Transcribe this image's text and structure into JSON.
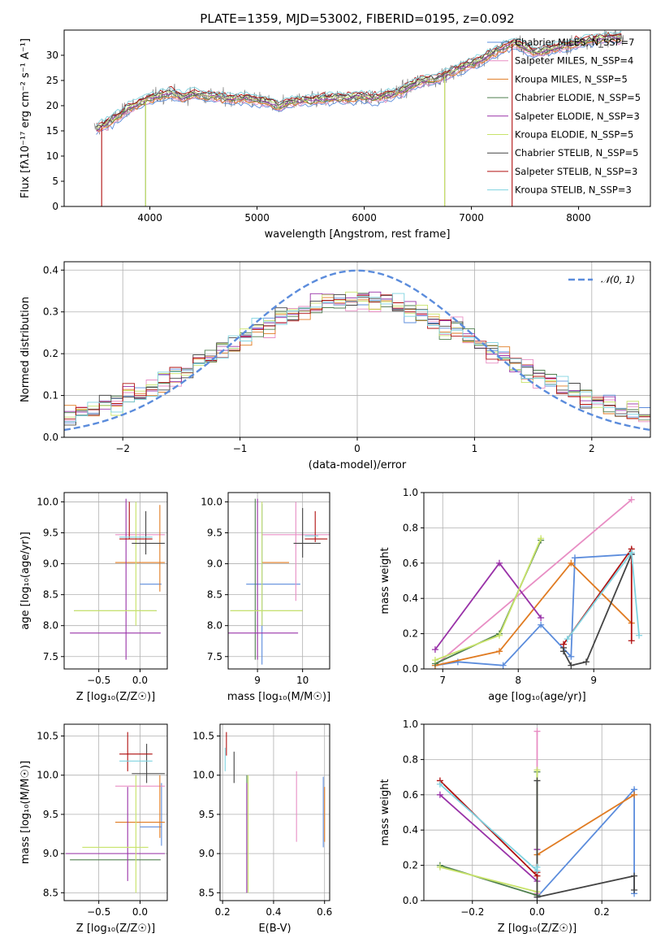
{
  "colors": {
    "chabrier_miles": "#5b8cdc",
    "salpeter_miles": "#e88ec4",
    "kroupa_miles": "#e07b22",
    "chabrier_elodie": "#4f7f4f",
    "salpeter_elodie": "#9932a8",
    "kroupa_elodie": "#c8e36a",
    "chabrier_stelib": "#444444",
    "salpeter_stelib": "#b01010",
    "kroupa_stelib": "#7fd3e0",
    "data": "#808080",
    "gauss": "#5b8cdc"
  },
  "chart_data": [
    {
      "id": "spectrum",
      "type": "line",
      "title": "PLATE=1359, MJD=53002, FIBERID=0195, z=0.092",
      "xlabel": "wavelength [Angstrom, rest frame]",
      "ylabel": "Flux [fλ10⁻¹⁷ erg cm⁻² s⁻¹ A⁻¹]",
      "xlim": [
        3200,
        8670
      ],
      "ylim": [
        0,
        35
      ],
      "xticks": [
        4000,
        5000,
        6000,
        7000,
        8000
      ],
      "yticks": [
        0,
        5,
        10,
        15,
        20,
        25,
        30
      ],
      "legend": [
        "Chabrier MILES, N_SSP=7",
        "Salpeter MILES, N_SSP=4",
        "Kroupa MILES, N_SSP=5",
        "Chabrier ELODIE, N_SSP=5",
        "Salpeter ELODIE, N_SSP=3",
        "Kroupa ELODIE, N_SSP=5",
        "Chabrier STELIB, N_SSP=5",
        "Salpeter STELIB, N_SSP=3",
        "Kroupa STELIB, N_SSP=3"
      ],
      "continuum": [
        [
          3500,
          15.5
        ],
        [
          3600,
          16.5
        ],
        [
          3700,
          17.8
        ],
        [
          3800,
          19.5
        ],
        [
          3900,
          20.5
        ],
        [
          4000,
          21.5
        ],
        [
          4100,
          22.0
        ],
        [
          4200,
          22.5
        ],
        [
          4300,
          21.5
        ],
        [
          4400,
          22.3
        ],
        [
          4500,
          22.0
        ],
        [
          4600,
          21.8
        ],
        [
          4700,
          21.5
        ],
        [
          4800,
          21.3
        ],
        [
          4900,
          21.5
        ],
        [
          5000,
          21.0
        ],
        [
          5100,
          20.8
        ],
        [
          5200,
          19.8
        ],
        [
          5300,
          20.7
        ],
        [
          5400,
          21.0
        ],
        [
          5500,
          21.0
        ],
        [
          5600,
          21.3
        ],
        [
          5700,
          21.5
        ],
        [
          5800,
          21.5
        ],
        [
          5900,
          21.6
        ],
        [
          6000,
          21.8
        ],
        [
          6100,
          21.5
        ],
        [
          6200,
          22.0
        ],
        [
          6300,
          22.5
        ],
        [
          6400,
          23.5
        ],
        [
          6500,
          24.8
        ],
        [
          6600,
          25.0
        ],
        [
          6700,
          25.5
        ],
        [
          6800,
          26.5
        ],
        [
          6900,
          27.5
        ],
        [
          7000,
          28.3
        ],
        [
          7100,
          29.2
        ],
        [
          7200,
          30.5
        ],
        [
          7300,
          31.5
        ],
        [
          7400,
          32.5
        ],
        [
          7500,
          31.5
        ],
        [
          7600,
          30.5
        ],
        [
          7700,
          31.0
        ],
        [
          7800,
          31.5
        ],
        [
          7900,
          32.0
        ],
        [
          8000,
          32.5
        ],
        [
          8100,
          33.0
        ],
        [
          8200,
          33.3
        ],
        [
          8300,
          33.5
        ],
        [
          8400,
          33.6
        ]
      ]
    },
    {
      "id": "residuals",
      "type": "histogram",
      "xlabel": "(data-model)/error",
      "ylabel": "Normed distribution",
      "xlim": [
        -2.5,
        2.5
      ],
      "ylim": [
        0,
        0.42
      ],
      "xticks": [
        -2,
        -1,
        0,
        1,
        2
      ],
      "yticks": [
        0.0,
        0.1,
        0.2,
        0.3,
        0.4
      ],
      "legend": [
        "𝒩(0, 1)"
      ],
      "bin_width": 0.1
    },
    {
      "id": "age_vs_Z",
      "type": "errorbar",
      "xlabel": "Z [log₁₀(Z/Z☉)]",
      "ylabel": "age  [log₁₀(age/yr)]",
      "xlim": [
        -0.92,
        0.33
      ],
      "ylim": [
        7.3,
        10.15
      ],
      "xticks": [
        -0.5,
        0.0
      ],
      "xtick_labels": [
        "−0.5",
        "0.0"
      ],
      "yticks": [
        7.5,
        8.0,
        8.5,
        9.0,
        9.5,
        10.0
      ],
      "points": [
        {
          "model": "chabrier_miles",
          "x": 0.13,
          "xerr": 0.13,
          "y": 8.67,
          "yerr": 0.0
        },
        {
          "model": "salpeter_miles",
          "x": 0.0,
          "xerr": 0.3,
          "y": 9.47,
          "yerr": 0.0
        },
        {
          "model": "kroupa_miles",
          "x": 0.0,
          "xerr": 0.3,
          "y": 9.02,
          "yerr": 0.0
        },
        {
          "model": "kroupa_miles",
          "x": 0.24,
          "xerr": 0.0,
          "y": 9.25,
          "yerr": 0.7
        },
        {
          "model": "chabrier_elodie",
          "x": -0.3,
          "xerr": 0.5,
          "y": 8.24,
          "yerr": 0.0
        },
        {
          "model": "salpeter_elodie",
          "x": -0.3,
          "xerr": 0.55,
          "y": 7.88,
          "yerr": 0.0
        },
        {
          "model": "salpeter_elodie",
          "x": -0.17,
          "xerr": 0.0,
          "y": 8.75,
          "yerr": 1.3
        },
        {
          "model": "kroupa_elodie",
          "x": -0.3,
          "xerr": 0.5,
          "y": 8.24,
          "yerr": 0.0
        },
        {
          "model": "kroupa_elodie",
          "x": -0.05,
          "xerr": 0.0,
          "y": 9.0,
          "yerr": 1.0
        },
        {
          "model": "chabrier_stelib",
          "x": 0.1,
          "xerr": 0.2,
          "y": 9.33,
          "yerr": 0.0
        },
        {
          "model": "chabrier_stelib",
          "x": 0.07,
          "xerr": 0.0,
          "y": 9.5,
          "yerr": 0.35
        },
        {
          "model": "salpeter_stelib",
          "x": -0.05,
          "xerr": 0.2,
          "y": 9.4,
          "yerr": 0.0
        },
        {
          "model": "salpeter_stelib",
          "x": -0.13,
          "xerr": 0.0,
          "y": 9.7,
          "yerr": 0.3
        },
        {
          "model": "kroupa_stelib",
          "x": -0.05,
          "xerr": 0.2,
          "y": 9.43,
          "yerr": 0.0
        }
      ]
    },
    {
      "id": "age_vs_mass",
      "type": "errorbar",
      "xlabel": "mass [log₁₀(M/M☉)]",
      "ylabel": "",
      "xlim": [
        8.35,
        10.6
      ],
      "ylim": [
        7.3,
        10.15
      ],
      "xticks": [
        9,
        10
      ],
      "xtick_labels": [
        "9",
        "10"
      ],
      "yticks": [
        7.5,
        8.0,
        8.5,
        9.0,
        9.5,
        10.0
      ],
      "points": [
        {
          "model": "chabrier_miles",
          "x": 9.35,
          "xerr": 0.6,
          "y": 8.67,
          "yerr": 0.0
        },
        {
          "model": "chabrier_miles",
          "x": 9.1,
          "xerr": 0.0,
          "y": 8.67,
          "yerr": 1.3
        },
        {
          "model": "salpeter_miles",
          "x": 9.9,
          "xerr": 0.8,
          "y": 9.47,
          "yerr": 0.0
        },
        {
          "model": "salpeter_miles",
          "x": 9.85,
          "xerr": 0.0,
          "y": 9.2,
          "yerr": 0.8
        },
        {
          "model": "kroupa_miles",
          "x": 9.4,
          "xerr": 0.3,
          "y": 9.02,
          "yerr": 0.0
        },
        {
          "model": "chabrier_elodie",
          "x": 8.95,
          "xerr": 0.0,
          "y": 8.75,
          "yerr": 1.3
        },
        {
          "model": "chabrier_elodie",
          "x": 9.2,
          "xerr": 0.8,
          "y": 8.24,
          "yerr": 0.0
        },
        {
          "model": "salpeter_elodie",
          "x": 9.0,
          "xerr": 0.0,
          "y": 8.75,
          "yerr": 1.3
        },
        {
          "model": "salpeter_elodie",
          "x": 9.0,
          "xerr": 0.9,
          "y": 7.88,
          "yerr": 0.0
        },
        {
          "model": "kroupa_elodie",
          "x": 9.1,
          "xerr": 0.0,
          "y": 9.0,
          "yerr": 1.0
        },
        {
          "model": "kroupa_elodie",
          "x": 9.2,
          "xerr": 0.8,
          "y": 8.24,
          "yerr": 0.0
        },
        {
          "model": "chabrier_stelib",
          "x": 10.0,
          "xerr": 0.0,
          "y": 9.5,
          "yerr": 0.4
        },
        {
          "model": "chabrier_stelib",
          "x": 10.1,
          "xerr": 0.3,
          "y": 9.33,
          "yerr": 0.0
        },
        {
          "model": "salpeter_stelib",
          "x": 10.28,
          "xerr": 0.0,
          "y": 9.6,
          "yerr": 0.25
        },
        {
          "model": "salpeter_stelib",
          "x": 10.3,
          "xerr": 0.25,
          "y": 9.4,
          "yerr": 0.0
        },
        {
          "model": "kroupa_stelib",
          "x": 10.2,
          "xerr": 0.15,
          "y": 9.45,
          "yerr": 0.0
        }
      ]
    },
    {
      "id": "weight_vs_age",
      "type": "line",
      "xlabel": "age  [log₁₀(age/yr)]",
      "ylabel": "mass weight",
      "xlim": [
        6.75,
        9.75
      ],
      "ylim": [
        0,
        1.0
      ],
      "xticks": [
        7,
        8,
        9
      ],
      "yticks": [
        0.0,
        0.2,
        0.4,
        0.6,
        0.8,
        1.0
      ],
      "series": [
        {
          "model": "chabrier_miles",
          "x": [
            6.9,
            7.2,
            7.8,
            8.3,
            8.7,
            8.75,
            9.5
          ],
          "y": [
            0.02,
            0.04,
            0.02,
            0.25,
            0.07,
            0.63,
            0.65
          ]
        },
        {
          "model": "salpeter_miles",
          "x": [
            6.9,
            9.5
          ],
          "y": [
            0.02,
            0.96
          ]
        },
        {
          "model": "kroupa_miles",
          "x": [
            6.9,
            7.75,
            8.7,
            9.5
          ],
          "y": [
            0.02,
            0.1,
            0.6,
            0.26
          ]
        },
        {
          "model": "chabrier_elodie",
          "x": [
            6.9,
            7.75,
            8.3
          ],
          "y": [
            0.03,
            0.2,
            0.73
          ]
        },
        {
          "model": "salpeter_elodie",
          "x": [
            6.9,
            7.75,
            8.3
          ],
          "y": [
            0.11,
            0.6,
            0.29
          ]
        },
        {
          "model": "kroupa_elodie",
          "x": [
            6.9,
            7.75,
            8.3
          ],
          "y": [
            0.05,
            0.19,
            0.74
          ]
        },
        {
          "model": "chabrier_stelib",
          "x": [
            8.6,
            8.6,
            8.7,
            8.9,
            9.5
          ],
          "y": [
            0.12,
            0.1,
            0.02,
            0.04,
            0.65
          ]
        },
        {
          "model": "salpeter_stelib",
          "x": [
            8.6,
            9.5,
            9.5
          ],
          "y": [
            0.14,
            0.68,
            0.16
          ]
        },
        {
          "model": "kroupa_stelib",
          "x": [
            8.65,
            9.5,
            9.6
          ],
          "y": [
            0.17,
            0.66,
            0.19
          ]
        }
      ]
    },
    {
      "id": "mass_vs_Z",
      "type": "errorbar",
      "xlabel": "Z [log₁₀(Z/Z☉)]",
      "ylabel": "mass [log₁₀(M/M☉)]",
      "xlim": [
        -0.92,
        0.33
      ],
      "ylim": [
        8.4,
        10.65
      ],
      "xticks": [
        -0.5,
        0.0
      ],
      "xtick_labels": [
        "−0.5",
        "0.0"
      ],
      "yticks": [
        8.5,
        9.0,
        9.5,
        10.0,
        10.5
      ],
      "points": [
        {
          "model": "chabrier_miles",
          "x": 0.13,
          "xerr": 0.13,
          "y": 9.34,
          "yerr": 0.0
        },
        {
          "model": "chabrier_miles",
          "x": 0.26,
          "xerr": 0.0,
          "y": 9.5,
          "yerr": 0.4
        },
        {
          "model": "salpeter_miles",
          "x": 0.0,
          "xerr": 0.3,
          "y": 9.86,
          "yerr": 0.0
        },
        {
          "model": "kroupa_miles",
          "x": 0.0,
          "xerr": 0.3,
          "y": 9.4,
          "yerr": 0.0
        },
        {
          "model": "kroupa_miles",
          "x": 0.24,
          "xerr": 0.0,
          "y": 9.6,
          "yerr": 0.4
        },
        {
          "model": "chabrier_elodie",
          "x": -0.3,
          "xerr": 0.55,
          "y": 8.92,
          "yerr": 0.0
        },
        {
          "model": "salpeter_elodie",
          "x": -0.3,
          "xerr": 0.6,
          "y": 9.0,
          "yerr": 0.0
        },
        {
          "model": "salpeter_elodie",
          "x": -0.15,
          "xerr": 0.0,
          "y": 9.25,
          "yerr": 0.6
        },
        {
          "model": "kroupa_elodie",
          "x": -0.3,
          "xerr": 0.4,
          "y": 9.08,
          "yerr": 0.0
        },
        {
          "model": "kroupa_elodie",
          "x": -0.05,
          "xerr": 0.0,
          "y": 9.25,
          "yerr": 0.75
        },
        {
          "model": "chabrier_stelib",
          "x": 0.1,
          "xerr": 0.2,
          "y": 10.02,
          "yerr": 0.0
        },
        {
          "model": "chabrier_stelib",
          "x": 0.08,
          "xerr": 0.0,
          "y": 10.15,
          "yerr": 0.25
        },
        {
          "model": "salpeter_stelib",
          "x": -0.05,
          "xerr": 0.2,
          "y": 10.27,
          "yerr": 0.0
        },
        {
          "model": "salpeter_stelib",
          "x": -0.15,
          "xerr": 0.0,
          "y": 10.3,
          "yerr": 0.25
        },
        {
          "model": "kroupa_stelib",
          "x": -0.05,
          "xerr": 0.2,
          "y": 10.18,
          "yerr": 0.0
        }
      ]
    },
    {
      "id": "mass_vs_ebv",
      "type": "errorbar",
      "xlabel": "E(B-V)",
      "ylabel": "",
      "xlim": [
        0.19,
        0.62
      ],
      "ylim": [
        8.4,
        10.65
      ],
      "xticks": [
        0.2,
        0.4,
        0.6
      ],
      "xtick_labels": [
        "0.2",
        "0.4",
        "0.6"
      ],
      "yticks": [
        8.5,
        9.0,
        9.5,
        10.0,
        10.5
      ],
      "points": [
        {
          "model": "chabrier_miles",
          "x": 0.595,
          "xerr": 0.0,
          "y": 9.53,
          "yerr": 0.45
        },
        {
          "model": "salpeter_miles",
          "x": 0.49,
          "xerr": 0.0,
          "y": 9.6,
          "yerr": 0.45
        },
        {
          "model": "kroupa_miles",
          "x": 0.6,
          "xerr": 0.0,
          "y": 9.5,
          "yerr": 0.35
        },
        {
          "model": "chabrier_elodie",
          "x": 0.295,
          "xerr": 0.0,
          "y": 9.25,
          "yerr": 0.75
        },
        {
          "model": "salpeter_elodie",
          "x": 0.295,
          "xerr": 0.0,
          "y": 9.2,
          "yerr": 0.7
        },
        {
          "model": "kroupa_elodie",
          "x": 0.3,
          "xerr": 0.0,
          "y": 9.25,
          "yerr": 0.75
        },
        {
          "model": "chabrier_stelib",
          "x": 0.245,
          "xerr": 0.0,
          "y": 10.1,
          "yerr": 0.2
        },
        {
          "model": "salpeter_stelib",
          "x": 0.215,
          "xerr": 0.0,
          "y": 10.4,
          "yerr": 0.15
        },
        {
          "model": "kroupa_stelib",
          "x": 0.21,
          "xerr": 0.0,
          "y": 10.2,
          "yerr": 0.15
        }
      ]
    },
    {
      "id": "weight_vs_Z",
      "type": "line",
      "xlabel": "Z [log₁₀(Z/Z☉)]",
      "ylabel": "mass weight",
      "xlim": [
        -0.35,
        0.35
      ],
      "ylim": [
        0,
        1.0
      ],
      "xticks": [
        -0.2,
        0.0,
        0.2
      ],
      "xtick_labels": [
        "−0.2",
        "0.0",
        "0.2"
      ],
      "yticks": [
        0.0,
        0.2,
        0.4,
        0.6,
        0.8,
        1.0
      ],
      "series": [
        {
          "model": "chabrier_miles",
          "x": [
            0.0,
            0.3,
            0.3
          ],
          "y": [
            0.02,
            0.63,
            0.04
          ]
        },
        {
          "model": "salpeter_miles",
          "x": [
            0.0,
            0.0
          ],
          "y": [
            0.04,
            0.96
          ]
        },
        {
          "model": "kroupa_miles",
          "x": [
            0.0,
            0.3
          ],
          "y": [
            0.26,
            0.6
          ]
        },
        {
          "model": "chabrier_elodie",
          "x": [
            -0.3,
            0.0,
            0.0
          ],
          "y": [
            0.2,
            0.03,
            0.73
          ]
        },
        {
          "model": "salpeter_elodie",
          "x": [
            -0.3,
            0.0,
            0.0
          ],
          "y": [
            0.6,
            0.11,
            0.29
          ]
        },
        {
          "model": "kroupa_elodie",
          "x": [
            -0.3,
            0.0,
            0.0
          ],
          "y": [
            0.19,
            0.05,
            0.74
          ]
        },
        {
          "model": "chabrier_stelib",
          "x": [
            0.0,
            0.0,
            0.3,
            0.3
          ],
          "y": [
            0.68,
            0.02,
            0.14,
            0.06
          ]
        },
        {
          "model": "salpeter_stelib",
          "x": [
            -0.3,
            0.0,
            0.0
          ],
          "y": [
            0.68,
            0.14,
            0.16
          ]
        },
        {
          "model": "kroupa_stelib",
          "x": [
            -0.3,
            0.0,
            0.0
          ],
          "y": [
            0.66,
            0.17,
            0.19
          ]
        }
      ]
    }
  ]
}
